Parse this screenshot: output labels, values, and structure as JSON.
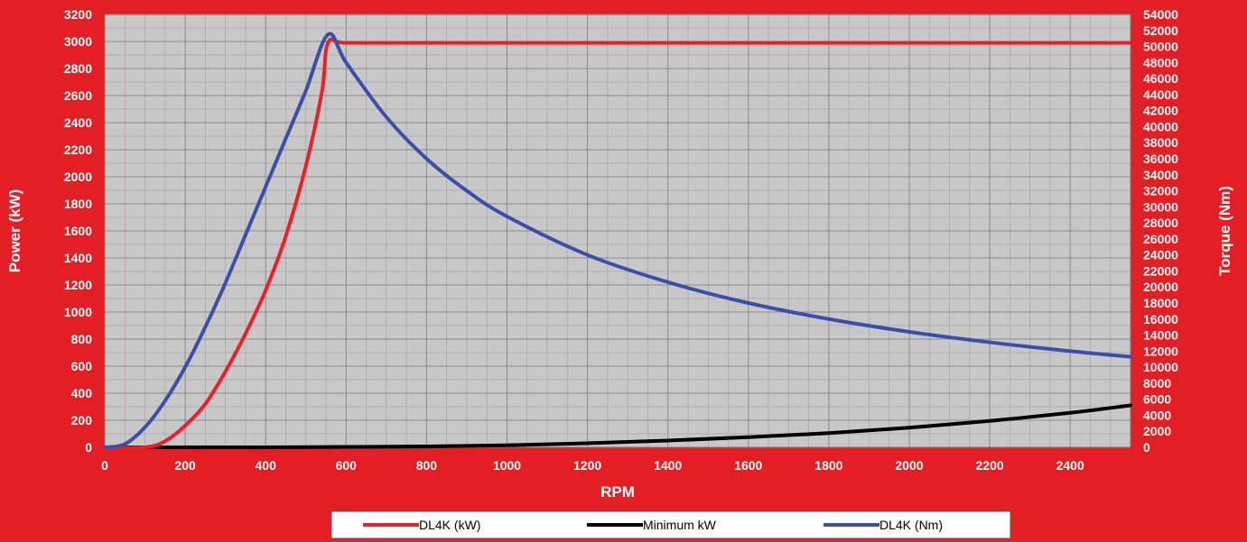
{
  "chart_data": {
    "type": "line",
    "xlabel": "RPM",
    "ylabel_left": "Power (kW)",
    "ylabel_right": "Torque (Nm)",
    "xlim": [
      0,
      2550
    ],
    "ylim_left": [
      0,
      3200
    ],
    "ylim_right": [
      0,
      54000
    ],
    "x_ticks": [
      0,
      200,
      400,
      600,
      800,
      1000,
      1200,
      1400,
      1600,
      1800,
      2000,
      2200,
      2400
    ],
    "y_left_ticks": [
      0,
      200,
      400,
      600,
      800,
      1000,
      1200,
      1400,
      1600,
      1800,
      2000,
      2200,
      2400,
      2600,
      2800,
      3000,
      3200
    ],
    "y_right_ticks": [
      0,
      2000,
      4000,
      6000,
      8000,
      10000,
      12000,
      14000,
      16000,
      18000,
      20000,
      22000,
      24000,
      26000,
      28000,
      30000,
      32000,
      34000,
      36000,
      38000,
      40000,
      42000,
      44000,
      46000,
      48000,
      50000,
      52000,
      54000
    ],
    "grid": true,
    "legend_position": "bottom",
    "series": [
      {
        "name": "DL4K (kW)",
        "axis": "left",
        "color": "#e8202a",
        "x": [
          0,
          100,
          150,
          200,
          250,
          300,
          350,
          400,
          450,
          500,
          540,
          555,
          600,
          800,
          1000,
          1200,
          1400,
          1600,
          1800,
          2000,
          2200,
          2400,
          2550
        ],
        "values": [
          0,
          0,
          45,
          160,
          320,
          560,
          840,
          1160,
          1560,
          2080,
          2630,
          2990,
          2990,
          2990,
          2990,
          2990,
          2990,
          2990,
          2990,
          2990,
          2990,
          2990,
          2990
        ]
      },
      {
        "name": "Minimum kW",
        "axis": "left",
        "color": "#000000",
        "x": [
          0,
          200,
          400,
          600,
          800,
          1000,
          1200,
          1400,
          1600,
          1800,
          2000,
          2200,
          2400,
          2550
        ],
        "values": [
          0,
          0,
          0,
          3,
          7,
          15,
          30,
          50,
          75,
          105,
          145,
          195,
          255,
          310
        ]
      },
      {
        "name": "DL4K (Nm)",
        "axis": "right",
        "color": "#3c4fa8",
        "x": [
          0,
          50,
          100,
          150,
          200,
          250,
          300,
          350,
          400,
          450,
          500,
          555,
          600,
          700,
          800,
          900,
          1000,
          1200,
          1400,
          1600,
          1800,
          2000,
          2200,
          2400,
          2550
        ],
        "values": [
          0,
          400,
          2500,
          5800,
          10000,
          15000,
          20500,
          26500,
          32500,
          38500,
          44500,
          51500,
          48000,
          41200,
          36000,
          32000,
          28800,
          24000,
          20600,
          18000,
          16000,
          14400,
          13100,
          12000,
          11300
        ]
      }
    ]
  }
}
